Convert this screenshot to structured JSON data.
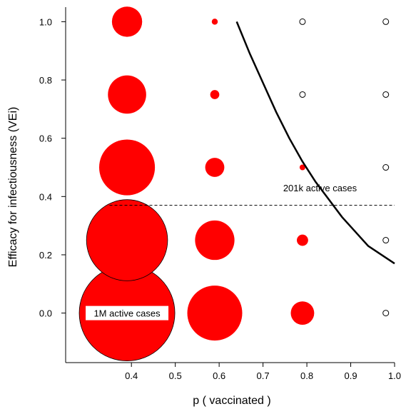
{
  "chart_data": {
    "type": "scatter",
    "variant": "bubble",
    "xlabel": "p ( vaccinated )",
    "ylabel": "Efficacy for infectiousness (VEi)",
    "xlim": [
      0.25,
      1.0
    ],
    "ylim": [
      -0.17,
      1.05
    ],
    "xticks": [
      0.4,
      0.5,
      0.6,
      0.7,
      0.8,
      0.9,
      1.0
    ],
    "xtick_labels": [
      "0.4",
      "0.5",
      "0.6",
      "0.7",
      "0.8",
      "0.9",
      "1.0"
    ],
    "yticks": [
      0.0,
      0.2,
      0.4,
      0.6,
      0.8,
      1.0
    ],
    "ytick_labels": [
      "0.0",
      "0.2",
      "0.4",
      "0.6",
      "0.8",
      "1.0"
    ],
    "bubble_color": "#ff0000",
    "size_label": "active cases",
    "points": [
      {
        "x": 0.39,
        "y": 1.0,
        "size": 0.1
      },
      {
        "x": 0.39,
        "y": 0.75,
        "size": 0.16
      },
      {
        "x": 0.39,
        "y": 0.5,
        "size": 0.34
      },
      {
        "x": 0.39,
        "y": 0.25,
        "size": 0.72
      },
      {
        "x": 0.39,
        "y": 0.0,
        "size": 1.0
      },
      {
        "x": 0.59,
        "y": 1.0,
        "size": 0.004
      },
      {
        "x": 0.59,
        "y": 0.75,
        "size": 0.009
      },
      {
        "x": 0.59,
        "y": 0.5,
        "size": 0.04
      },
      {
        "x": 0.59,
        "y": 0.25,
        "size": 0.17
      },
      {
        "x": 0.59,
        "y": 0.0,
        "size": 0.33
      },
      {
        "x": 0.79,
        "y": 1.0,
        "size": 0.0
      },
      {
        "x": 0.79,
        "y": 0.75,
        "size": 0.0
      },
      {
        "x": 0.79,
        "y": 0.5,
        "size": 0.003
      },
      {
        "x": 0.79,
        "y": 0.25,
        "size": 0.014
      },
      {
        "x": 0.79,
        "y": 0.0,
        "size": 0.06
      },
      {
        "x": 0.98,
        "y": 1.0,
        "size": 0.0
      },
      {
        "x": 0.98,
        "y": 0.75,
        "size": 0.0
      },
      {
        "x": 0.98,
        "y": 0.5,
        "size": 0.0
      },
      {
        "x": 0.98,
        "y": 0.25,
        "size": 0.0
      },
      {
        "x": 0.98,
        "y": 0.0,
        "size": 0.0
      }
    ],
    "curve": {
      "x": [
        0.64,
        0.67,
        0.7,
        0.73,
        0.76,
        0.79,
        0.82,
        0.85,
        0.88,
        0.91,
        0.94,
        0.97,
        1.0
      ],
      "y": [
        1.0,
        0.89,
        0.79,
        0.69,
        0.6,
        0.52,
        0.45,
        0.39,
        0.33,
        0.28,
        0.23,
        0.2,
        0.17
      ]
    },
    "threshold": {
      "y": 0.37,
      "x_start": 0.35,
      "x_end": 1.0,
      "style": "dashed"
    },
    "annotations": [
      {
        "text": "201k active cases",
        "x": 0.83,
        "y": 0.43
      },
      {
        "text": "1M active cases",
        "x": 0.39,
        "y": 0.0
      }
    ]
  }
}
